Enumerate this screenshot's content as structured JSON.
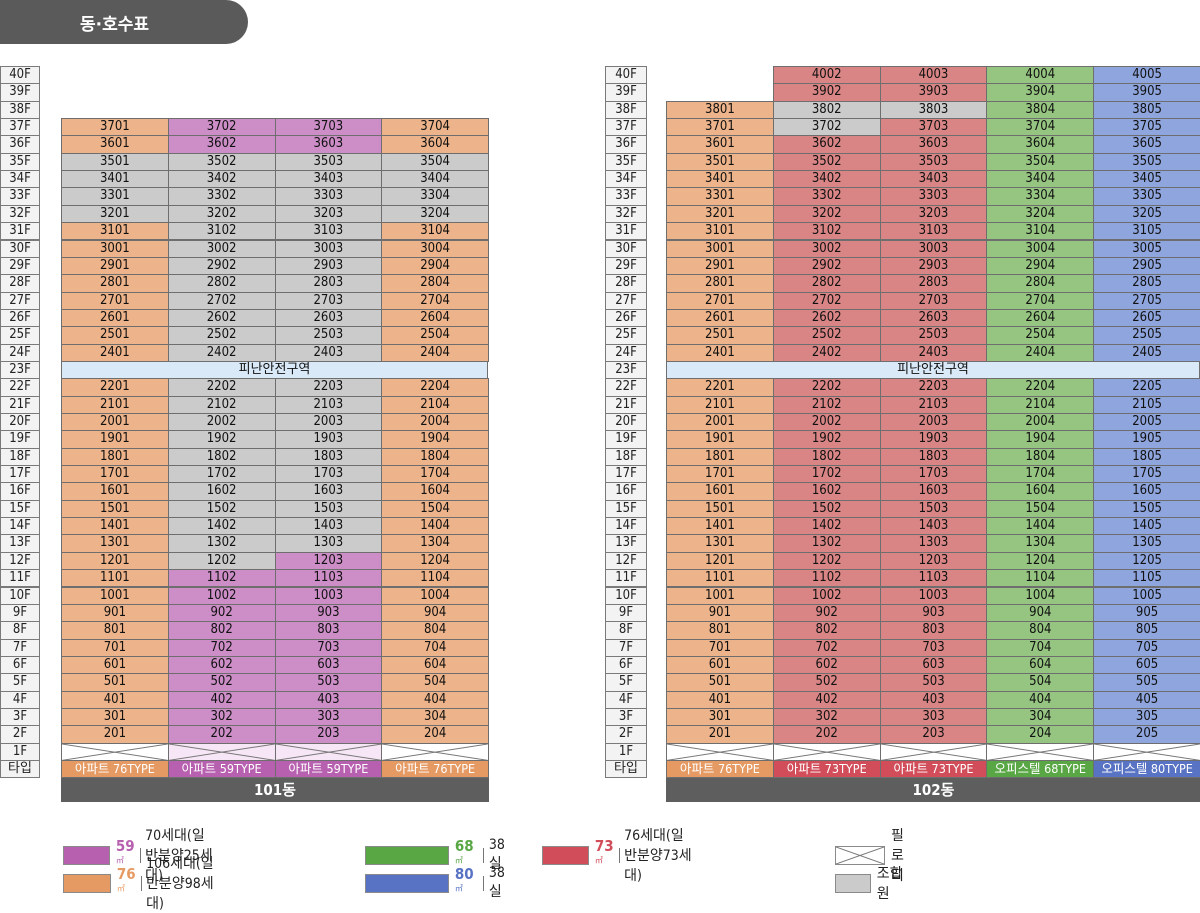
{
  "title": "동·호수표",
  "floor_labels": [
    "40F",
    "39F",
    "38F",
    "37F",
    "36F",
    "35F",
    "34F",
    "33F",
    "32F",
    "31F",
    "30F",
    "29F",
    "28F",
    "27F",
    "26F",
    "25F",
    "24F",
    "23F",
    "22F",
    "21F",
    "20F",
    "19F",
    "18F",
    "17F",
    "16F",
    "15F",
    "14F",
    "13F",
    "12F",
    "11F",
    "10F",
    "9F",
    "8F",
    "7F",
    "6F",
    "5F",
    "4F",
    "3F",
    "2F",
    "1F"
  ],
  "type_row_label": "타입",
  "refuge_label": "피난안전구역",
  "buildings": [
    {
      "name": "101동",
      "columns": [
        {
          "line": "01",
          "type_label": "아파트 76TYPE",
          "type": "t76"
        },
        {
          "line": "02",
          "type_label": "아파트 59TYPE",
          "type": "t59"
        },
        {
          "line": "03",
          "type_label": "아파트 59TYPE",
          "type": "t59"
        },
        {
          "line": "04",
          "type_label": "아파트 76TYPE",
          "type": "t76"
        }
      ],
      "top_floor": 37,
      "union_cells": [
        "3501",
        "3502",
        "3503",
        "3504",
        "3401",
        "3402",
        "3403",
        "3404",
        "3301",
        "3302",
        "3303",
        "3304",
        "3201",
        "3202",
        "3203",
        "3204",
        "3102",
        "3103",
        "3002",
        "3003",
        "2902",
        "2903",
        "2802",
        "2803",
        "2702",
        "2703",
        "2602",
        "2603",
        "2502",
        "2503",
        "2402",
        "2403",
        "2202",
        "2203",
        "2102",
        "2103",
        "2002",
        "2003",
        "1902",
        "1903",
        "1802",
        "1803",
        "1702",
        "1703",
        "1602",
        "1603",
        "1502",
        "1503",
        "1402",
        "1403",
        "1302",
        "1303",
        "1202"
      ]
    },
    {
      "name": "102동",
      "columns": [
        {
          "line": "01",
          "type_label": "아파트 76TYPE",
          "type": "t76",
          "top_floor": 38
        },
        {
          "line": "02",
          "type_label": "아파트 73TYPE",
          "type": "t73",
          "top_floor": 40
        },
        {
          "line": "03",
          "type_label": "아파트 73TYPE",
          "type": "t73",
          "top_floor": 40
        },
        {
          "line": "04",
          "type_label": "오피스텔 68TYPE",
          "type": "t68",
          "top_floor": 40
        },
        {
          "line": "05",
          "type_label": "오피스텔 80TYPE",
          "type": "t80",
          "top_floor": 40
        }
      ],
      "union_cells": [
        "3802",
        "3803",
        "3702"
      ]
    }
  ],
  "legend": [
    {
      "key": "t59",
      "area": "59",
      "unit": "㎡",
      "text": "70세대(일반분양25세대)",
      "color": "#b760b0"
    },
    {
      "key": "t76",
      "area": "76",
      "unit": "㎡",
      "text": "106세대(일반분양98세대)",
      "color": "#e69a63"
    },
    {
      "key": "t68",
      "area": "68",
      "unit": "㎡",
      "text": "38실",
      "color": "#58a744"
    },
    {
      "key": "t80",
      "area": "80",
      "unit": "㎡",
      "text": "38실",
      "color": "#5873c3"
    },
    {
      "key": "t73",
      "area": "73",
      "unit": "㎡",
      "text": "76세대(일반분양73세대)",
      "color": "#d24d5a"
    },
    {
      "key": "piloti",
      "text": "필로티"
    },
    {
      "key": "union",
      "text": "조합원"
    }
  ]
}
